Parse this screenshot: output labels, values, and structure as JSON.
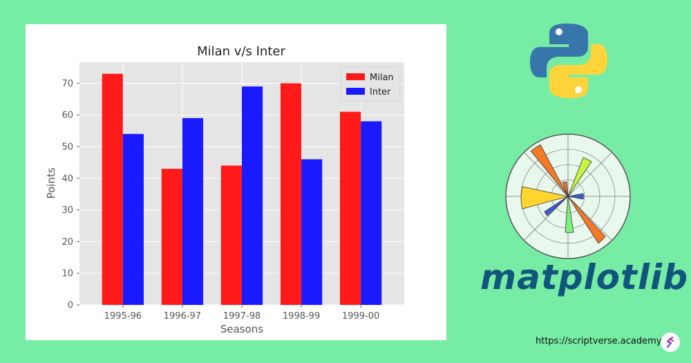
{
  "chart_data": {
    "type": "bar",
    "title": "Milan v/s Inter",
    "xlabel": "Seasons",
    "ylabel": "Points",
    "categories": [
      "1995-96",
      "1996-97",
      "1997-98",
      "1998-99",
      "1999-00"
    ],
    "series": [
      {
        "name": "Milan",
        "values": [
          73,
          43,
          44,
          70,
          61
        ],
        "color": "#FF1A1A"
      },
      {
        "name": "Inter",
        "values": [
          54,
          59,
          69,
          46,
          58
        ],
        "color": "#1A1AFF"
      }
    ],
    "yticks": [
      0,
      10,
      20,
      30,
      40,
      50,
      60,
      70
    ],
    "ylim": [
      0,
      76.65
    ],
    "grid": true,
    "legend_position": "top-right",
    "style": "ggplot"
  },
  "branding": {
    "library_name": "matplotlib",
    "url": "https://scriptverse.academy",
    "python_logo_icon": "python-logo-icon",
    "matplotlib_logo_icon": "matplotlib-polar-logo-icon",
    "brand_color": "#11557C",
    "background_color": "#77ECA4"
  }
}
